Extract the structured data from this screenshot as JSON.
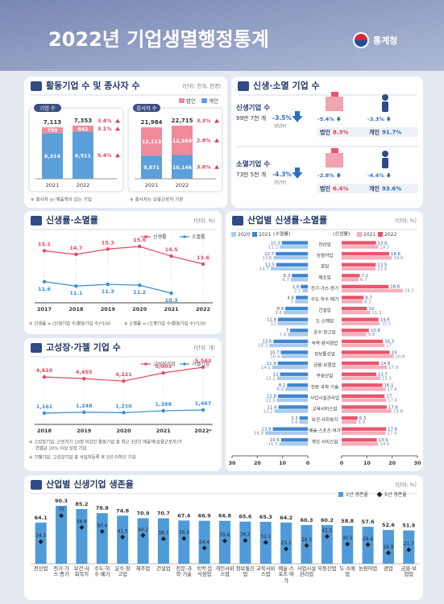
{
  "header": {
    "title": "2022년 기업생멸행정통계",
    "logo": "통계청"
  },
  "births_deaths": {
    "title": "신생·소멸 기업 수",
    "items": [
      {
        "label": "신생기업 수",
        "count": "99만 7천 개",
        "change": "-3.5%",
        "change_note": "전년비",
        "corp_change": "-5.4%",
        "indiv_change": "-3.3%",
        "corp_share_label": "법인",
        "corp_share": "8.3%",
        "indiv_share_label": "개인",
        "indiv_share": "91.7%"
      },
      {
        "label": "소멸기업 수",
        "count": "73만 5천 개",
        "change": "-4.3%",
        "change_note": "전년비",
        "corp_change": "-2.8%",
        "indiv_change": "-4.4%",
        "corp_share_label": "법인",
        "corp_share": "6.4%",
        "indiv_share_label": "개인",
        "indiv_share": "93.6%"
      }
    ]
  },
  "chart_data": [
    {
      "type": "stacked-bar-groups",
      "title": "활동기업 수 및 종사자 수",
      "unit": "(단위: 천개, 천명)",
      "legend": [
        {
          "name": "법인",
          "color": "#f08a9b"
        },
        {
          "name": "개인",
          "color": "#5b9fdb"
        }
      ],
      "groups": [
        {
          "label": "기업 수",
          "categories": [
            "2021",
            "2022"
          ],
          "totals": [
            7113,
            7353
          ],
          "totals_labels": [
            "7,113",
            "7,353"
          ],
          "series": [
            {
              "values": [
                799,
                842
              ]
            },
            {
              "values": [
                6314,
                6511
              ],
              "value_labels": [
                "6,314",
                "6,511"
              ]
            }
          ],
          "growth": [
            "3.4%",
            "5.4%",
            "3.1%"
          ],
          "note": "※ 종사자 or 매출액이 있는 기업"
        },
        {
          "label": "종사자 수",
          "categories": [
            "2021",
            "2022"
          ],
          "totals": [
            21984,
            22715
          ],
          "totals_labels": [
            "21,984",
            "22,715"
          ],
          "series": [
            {
              "values": [
                12113,
                12569
              ],
              "value_labels": [
                "12,113",
                "12,569"
              ]
            },
            {
              "values": [
                9871,
                10146
              ],
              "value_labels": [
                "9,871",
                "10,146"
              ]
            }
          ],
          "growth": [
            "3.3%",
            "3.8%",
            "2.8%"
          ],
          "note": "※ 종사자는 상용근로자 기준"
        }
      ]
    },
    {
      "type": "line",
      "title": "신생률·소멸률",
      "unit": "(단위: %)",
      "categories": [
        "2017",
        "2018",
        "2019",
        "2020",
        "2021",
        "2022"
      ],
      "series": [
        {
          "name": "신생률",
          "color": "#e8485f",
          "values": [
            15.1,
            14.7,
            15.3,
            15.6,
            14.5,
            13.6
          ]
        },
        {
          "name": "소멸률",
          "color": "#3a8ed3",
          "values": [
            11.6,
            11.1,
            11.3,
            11.2,
            10.3,
            null
          ]
        }
      ],
      "notes": [
        "※ 신생률 = (신생기업 수/활동기업 수)*100",
        "※ 소멸률 = (소멸기업 수/활동기업 수)*100"
      ]
    },
    {
      "type": "line",
      "title": "고성장·가젤 기업 수",
      "unit": "(단위: 개)",
      "categories": [
        "2018",
        "2019",
        "2020",
        "2021",
        "2022ᵖ"
      ],
      "series": [
        {
          "name": "고성장기업",
          "color": "#e8485f",
          "values": [
            4610,
            4455,
            4221,
            5003,
            5543
          ],
          "value_labels": [
            "4,610",
            "4,455",
            "4,221",
            "5,003",
            "5,543"
          ]
        },
        {
          "name": "가젤기업",
          "color": "#3a8ed3",
          "values": [
            1161,
            1248,
            1210,
            1388,
            1467
          ],
          "value_labels": [
            "1,161",
            "1,248",
            "1,210",
            "1,388",
            "1,467"
          ]
        }
      ],
      "notes": [
        "※ 고성장기업: 근로자가 10명 이상인 활동기업 중 최근 3년간 매출액(상용근로자)가",
        "연평균 20% 이상 성장 기업",
        "※ 가젤기업: 고성장기업 중 사업자등록 후 5년 이하인 기업"
      ]
    },
    {
      "type": "butterfly-bar",
      "title": "산업별 신생률·소멸률",
      "unit": "(단위: %)",
      "left_label": "(소멸률)",
      "right_label": "(신생률)",
      "categories": [
        "전산업",
        "농림어업",
        "광업",
        "제조업",
        "전기·가스·증기",
        "수도·하수·폐기",
        "건설업",
        "도·소매업",
        "운수·창고업",
        "숙박·음식점업",
        "정보통신업",
        "금융·보험업",
        "부동산업",
        "전문·과학·기술",
        "사업시설관리업",
        "교육서비스업",
        "보건·사회복지",
        "예술·스포츠·여가",
        "개인 서비스업"
      ],
      "series": [
        {
          "name": "2020",
          "side": "left",
          "color": "#a9cbec",
          "values": [
            11.2,
            13.6,
            14.7,
            6.7,
            2.1,
            5.0,
            9.6,
            12.0,
            7.9,
            15.3,
            10.4,
            14.1,
            12.2,
            8.9,
            12.3,
            13.2,
            3.4,
            16.9,
            11.3
          ]
        },
        {
          "name": "2021",
          "side": "left",
          "color": "#3f86d0",
          "values": [
            10.3,
            12.7,
            12.5,
            6.3,
            2.8,
            4.8,
            8.9,
            11.8,
            7.0,
            13.6,
            10.7,
            11.9,
            11.0,
            8.2,
            11.8,
            11.6,
            3.3,
            13.9,
            10.6
          ]
        },
        {
          "name": "2021",
          "side": "right",
          "color": "#f5aebb",
          "values": [
            14.5,
            19.9,
            13.4,
            6.7,
            24.2,
            8.3,
            11.3,
            15.1,
            9.8,
            17.0,
            20.6,
            17.9,
            15.3,
            17.4,
            17.6,
            19.8,
            5.9,
            17.4,
            14.5
          ]
        },
        {
          "name": "2022",
          "side": "right",
          "color": "#e9556c",
          "values": [
            13.6,
            18.8,
            13.5,
            7.2,
            18.6,
            8.7,
            10.0,
            14.6,
            10.8,
            16.3,
            19.0,
            14.8,
            13.7,
            16.1,
            17.0,
            17.8,
            6.3,
            17.6,
            13.9
          ]
        }
      ],
      "xlim": [
        0,
        30
      ],
      "xticks": [
        0,
        10,
        20,
        30
      ]
    },
    {
      "type": "bar-marker",
      "title": "산업별 신생기업 생존율",
      "unit": "(단위: %)",
      "categories": [
        "전산업",
        "전기·가스·증기",
        "보건·사회복지",
        "수도·하수·폐기",
        "운수·창고업",
        "제조업",
        "건설업",
        "전문·과학·기술",
        "숙박·음식점업",
        "개인서비스업",
        "정보통신업",
        "교육서비스업",
        "예술·스포츠·여가",
        "사업시설관리업",
        "부동산업",
        "도·소매업",
        "농림어업",
        "광업",
        "금융·보험업"
      ],
      "series": [
        {
          "name": "1년 생존율",
          "color": "#4f9bd9",
          "values": [
            64.1,
            90.3,
            85.2,
            78.8,
            74.8,
            70.9,
            70.7,
            67.4,
            66.9,
            66.8,
            65.6,
            65.3,
            64.2,
            60.3,
            60.2,
            58.8,
            57.6,
            52.6,
            51.9
          ]
        },
        {
          "name": "5년 생존율",
          "color": "#1f1f1f",
          "values": [
            34.3,
            75.0,
            56.6,
            50.4,
            41.5,
            44.2,
            38.7,
            39.3,
            24.4,
            35.6,
            36.2,
            33.1,
            23.1,
            28.3,
            42.5,
            30.5,
            29.6,
            16.9,
            21.7
          ]
        }
      ]
    }
  ]
}
